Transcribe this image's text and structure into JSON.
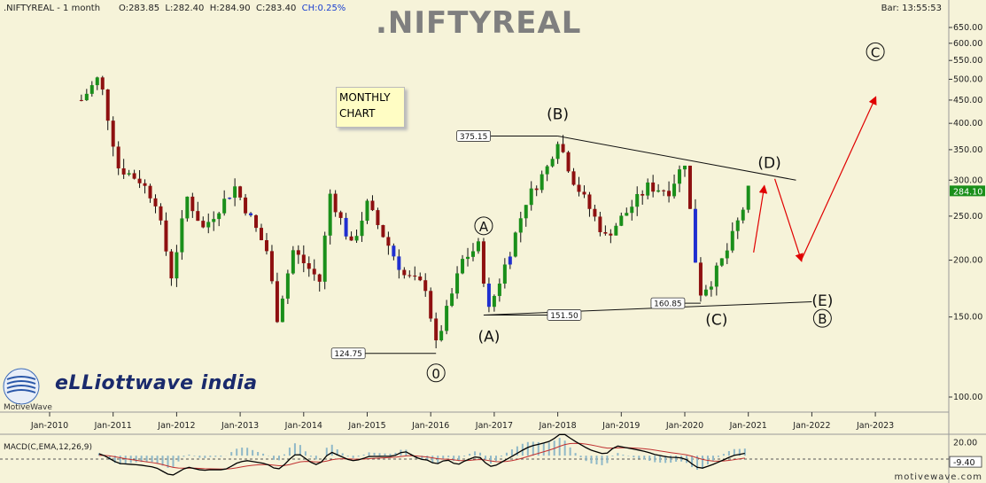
{
  "header": {
    "symbol": ".NIFTYREAL - 1 month",
    "open": "O:283.85",
    "low": "L:282.40",
    "high": "H:284.90",
    "close": "C:283.40",
    "change": "CH:0.25%",
    "bar_time": "Bar: 13:55:53"
  },
  "title": ".NIFTYREAL",
  "note_lines": [
    "MONTHLY",
    "CHART"
  ],
  "logo": {
    "brand": "eLLiottwave india",
    "platform": "MotiveWave"
  },
  "site": "motivewave.com",
  "colors": {
    "background": "#f6f3d9",
    "bull": "#1a8f1a",
    "bear": "#8e1010",
    "blue_candle": "#1f2fd0",
    "projection": "#e00000",
    "macd_line": "#000000",
    "signal_line": "#c03030",
    "histogram": "#8fb8c8"
  },
  "chart_data": [
    {
      "type": "candlestick",
      "title": ".NIFTYREAL",
      "interval": "1 month",
      "y_scale": "log",
      "ylim": [
        93,
        700
      ],
      "x_ticks": [
        "Jan-2010",
        "Jan-2011",
        "Jan-2012",
        "Jan-2013",
        "Jan-2014",
        "Jan-2015",
        "Jan-2016",
        "Jan-2017",
        "Jan-2018",
        "Jan-2019",
        "Jan-2020",
        "Jan-2021",
        "Jan-2022",
        "Jan-2023"
      ],
      "y_ticks": [
        "650.00",
        "600.00",
        "550.00",
        "500.00",
        "450.00",
        "400.00",
        "350.00",
        "300.00",
        "250.00",
        "200.00",
        "150.00",
        "100.00"
      ],
      "last_price": "284.10",
      "close_path": [
        {
          "t": "Jul-2010",
          "v": 450
        },
        {
          "t": "Oct-2010",
          "v": 500
        },
        {
          "t": "Nov-2010",
          "v": 470
        },
        {
          "t": "Feb-2011",
          "v": 320
        },
        {
          "t": "Jun-2011",
          "v": 300
        },
        {
          "t": "Sep-2011",
          "v": 270
        },
        {
          "t": "Dec-2011",
          "v": 185
        },
        {
          "t": "Mar-2012",
          "v": 275
        },
        {
          "t": "Jun-2012",
          "v": 235
        },
        {
          "t": "Dec-2012",
          "v": 290
        },
        {
          "t": "Jun-2013",
          "v": 210
        },
        {
          "t": "Aug-2013",
          "v": 150
        },
        {
          "t": "Nov-2013",
          "v": 210
        },
        {
          "t": "Apr-2014",
          "v": 180
        },
        {
          "t": "Jun-2014",
          "v": 280
        },
        {
          "t": "Oct-2014",
          "v": 215
        },
        {
          "t": "Jan-2015",
          "v": 265
        },
        {
          "t": "Aug-2015",
          "v": 185
        },
        {
          "t": "Dec-2015",
          "v": 175
        },
        {
          "t": "Feb-2016",
          "v": 130
        },
        {
          "t": "Jul-2016",
          "v": 200
        },
        {
          "t": "Oct-2016",
          "v": 215
        },
        {
          "t": "Dec-2016",
          "v": 155
        },
        {
          "t": "Apr-2017",
          "v": 210
        },
        {
          "t": "Jul-2017",
          "v": 270
        },
        {
          "t": "Nov-2017",
          "v": 320
        },
        {
          "t": "Jan-2018",
          "v": 370
        },
        {
          "t": "Apr-2018",
          "v": 300
        },
        {
          "t": "Oct-2018",
          "v": 225
        },
        {
          "t": "Feb-2019",
          "v": 255
        },
        {
          "t": "Jun-2019",
          "v": 290
        },
        {
          "t": "Oct-2019",
          "v": 285
        },
        {
          "t": "Jan-2020",
          "v": 330
        },
        {
          "t": "Mar-2020",
          "v": 200
        },
        {
          "t": "Apr-2020",
          "v": 170
        },
        {
          "t": "Jun-2020",
          "v": 180
        },
        {
          "t": "Sep-2020",
          "v": 210
        },
        {
          "t": "Dec-2020",
          "v": 260
        },
        {
          "t": "Jan-2021",
          "v": 284
        }
      ],
      "price_labels": [
        {
          "text": "375.15",
          "t": "Jan-2018",
          "v": 375.15
        },
        {
          "text": "124.75",
          "t": "Feb-2016",
          "v": 124.75
        },
        {
          "text": "151.50",
          "t": "Nov-2016",
          "v": 151.5
        },
        {
          "text": "160.85",
          "t": "Apr-2020",
          "v": 160.85
        }
      ],
      "wave_labels": [
        {
          "text": "(B)",
          "t": "Jan-2018",
          "v": 420
        },
        {
          "text": "(A)",
          "t": "Dec-2016",
          "v": 136
        },
        {
          "text": "(C)",
          "t": "Jul-2020",
          "v": 148
        },
        {
          "text": "(D)",
          "t": "May-2021",
          "v": 328
        },
        {
          "text": "(E)",
          "t": "Mar-2022",
          "v": 163
        },
        {
          "text": "A",
          "t": "Nov-2016",
          "v": 238,
          "circled": true
        },
        {
          "text": "B",
          "t": "Mar-2022",
          "v": 149,
          "circled": true
        },
        {
          "text": "C",
          "t": "Jan-2023",
          "v": 575,
          "circled": true
        },
        {
          "text": "0",
          "t": "Feb-2016",
          "v": 113,
          "circled": true
        }
      ],
      "trendlines": [
        {
          "from": {
            "t": "Jan-2018",
            "v": 375.15
          },
          "to": {
            "t": "Oct-2021",
            "v": 300
          }
        },
        {
          "from": {
            "t": "Nov-2016",
            "v": 151.5
          },
          "to": {
            "t": "Jan-2022",
            "v": 162
          }
        }
      ],
      "projection_path": [
        {
          "t": "Feb-2021",
          "v": 208
        },
        {
          "t": "Apr-2021",
          "v": 290
        },
        {
          "t": "Jun-2021",
          "v": 302
        },
        {
          "t": "Nov-2021",
          "v": 200
        },
        {
          "t": "Jan-2023",
          "v": 455
        }
      ]
    },
    {
      "type": "line",
      "title": "MACD(C,EMA,12,26,9)",
      "ylim": [
        -35,
        30
      ],
      "y_ticks": [
        "20.00"
      ],
      "last_value": "-9.40",
      "series": [
        {
          "name": "MACD",
          "values": []
        },
        {
          "name": "Signal",
          "values": []
        }
      ]
    }
  ]
}
